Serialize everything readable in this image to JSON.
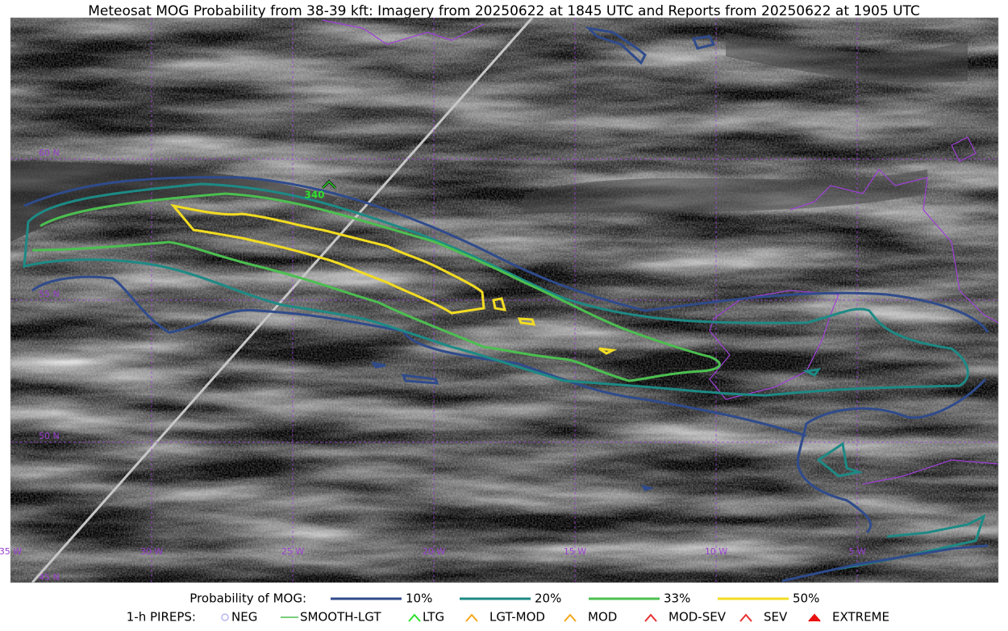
{
  "title": "Meteosat MOG Probability from 38-39 kft: Imagery from 20250622 at 1845 UTC and Reports from 20250622 at 1905 UTC",
  "map": {
    "latitude_labels": [
      "60 N",
      "55 N",
      "50 N",
      "45 N"
    ],
    "longitude_labels": [
      "35 W",
      "30 W",
      "25 W",
      "20 W",
      "15 W",
      "10 W",
      "5 W"
    ],
    "pirep_label": "340"
  },
  "legend": {
    "probability": {
      "title": "Probability of MOG:",
      "items": [
        "10%",
        "20%",
        "33%",
        "50%"
      ]
    },
    "pireps": {
      "title": "1-h PIREPS:",
      "items": [
        "NEG",
        "SMOOTH-LGT",
        "LTG",
        "LGT-MOD",
        "MOD",
        "MOD-SEV",
        "SEV",
        "EXTREME"
      ]
    }
  }
}
